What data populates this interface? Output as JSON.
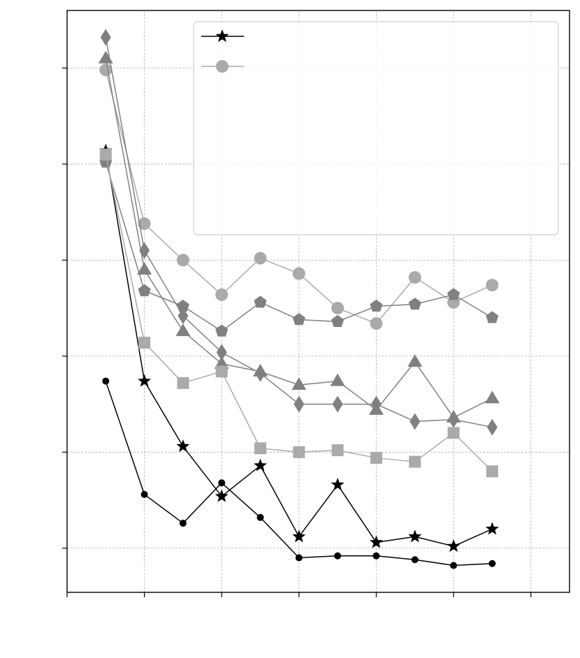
{
  "chart_data": {
    "type": "line",
    "title": "",
    "xlabel": "",
    "ylabel": "",
    "xlim": [
      0,
      6.5
    ],
    "ylim": [
      -0.23,
      2.8
    ],
    "xticks": [
      0,
      1,
      2,
      3,
      4,
      5,
      6
    ],
    "yticks": [
      0,
      0.5,
      1,
      1.5,
      2,
      2.5
    ],
    "grid": true,
    "legend_position": "top-right",
    "x": [
      0.5,
      1,
      1.5,
      2,
      2.5,
      3,
      3.5,
      4,
      4.5,
      5,
      5.5
    ],
    "series": [
      {
        "marker": "star",
        "color": "#000000",
        "values": [
          2.07,
          0.87,
          0.53,
          0.27,
          0.43,
          0.06,
          0.33,
          0.03,
          0.06,
          0.01,
          0.1
        ]
      },
      {
        "marker": "circle",
        "color": "#aaaaaa",
        "values": [
          2.49,
          1.69,
          1.5,
          1.32,
          1.51,
          1.43,
          1.25,
          1.17,
          1.41,
          1.28,
          1.37
        ]
      },
      {
        "marker": "small-circle",
        "color": "#000000",
        "values": [
          0.87,
          0.28,
          0.13,
          0.34,
          0.16,
          -0.05,
          -0.04,
          -0.04,
          -0.06,
          -0.09,
          -0.08
        ]
      },
      {
        "marker": "diamond",
        "color": "#808080",
        "values": [
          2.66,
          1.55,
          1.21,
          1.02,
          0.91,
          0.75,
          0.75,
          0.75,
          0.66,
          0.67,
          0.63
        ]
      },
      {
        "marker": "triangle",
        "color": "#808080",
        "values": [
          2.55,
          1.45,
          1.13,
          0.96,
          0.92,
          0.85,
          0.87,
          0.72,
          0.97,
          0.68,
          0.78
        ]
      },
      {
        "marker": "pentagon",
        "color": "#808080",
        "values": [
          2.01,
          1.34,
          1.26,
          1.13,
          1.28,
          1.19,
          1.18,
          1.26,
          1.27,
          1.32,
          1.2
        ]
      },
      {
        "marker": "square",
        "color": "#aaaaaa",
        "values": [
          2.05,
          1.07,
          0.86,
          0.92,
          0.52,
          0.5,
          0.51,
          0.47,
          0.45,
          0.6,
          0.4
        ]
      }
    ],
    "legend": [
      {
        "marker": "star",
        "color": "#000000"
      },
      {
        "marker": "circle",
        "color": "#aaaaaa"
      }
    ]
  }
}
